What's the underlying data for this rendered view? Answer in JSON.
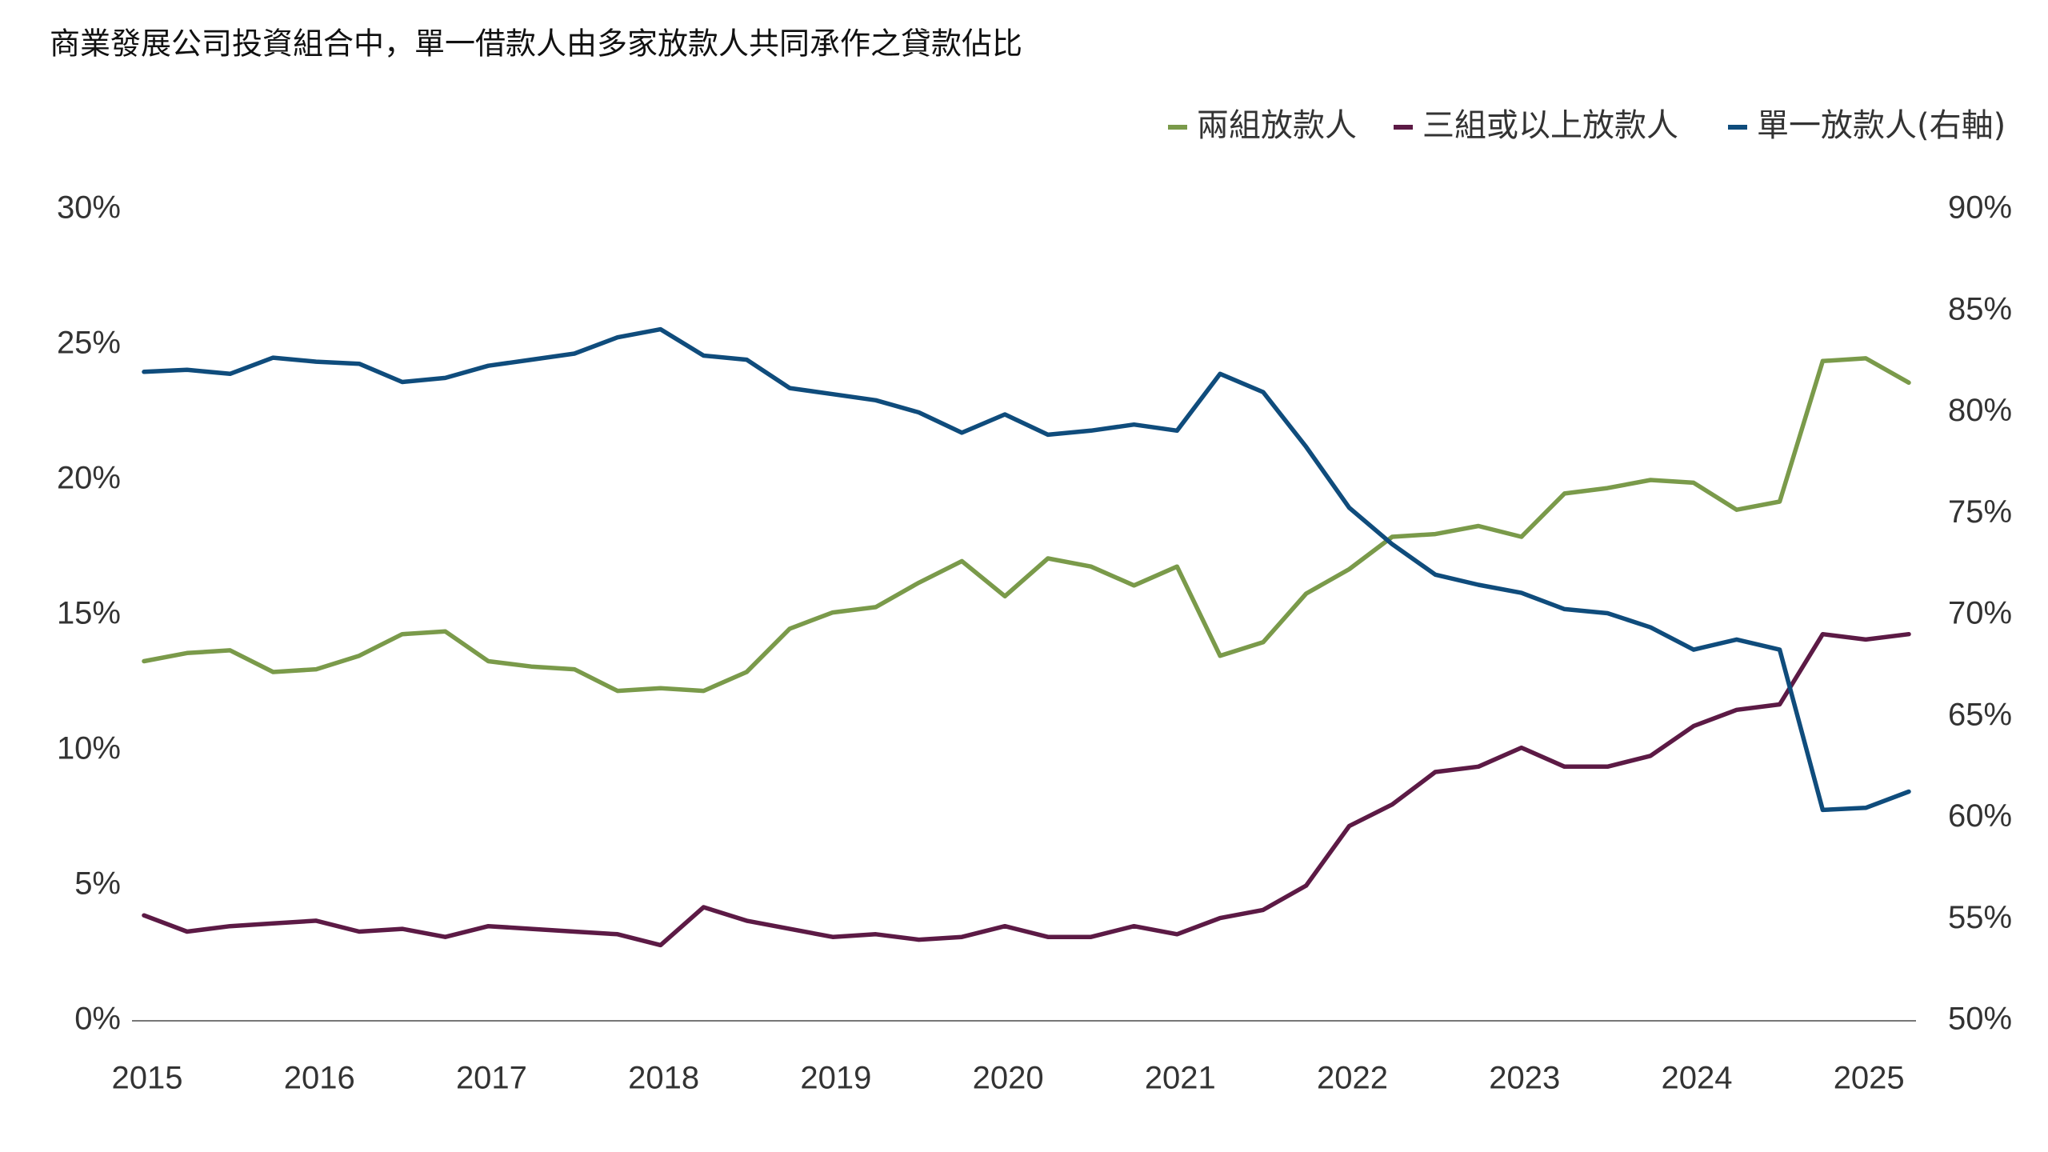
{
  "chart_data": {
    "type": "line",
    "title": "商業發展公司投資組合中，單一借款人由多家放款人共同承作之貸款佔比",
    "categories": [
      "2015",
      null,
      null,
      null,
      "2016",
      null,
      null,
      null,
      "2017",
      null,
      null,
      null,
      "2018",
      null,
      null,
      null,
      "2019",
      null,
      null,
      null,
      "2020",
      null,
      null,
      null,
      "2021",
      null,
      null,
      null,
      "2022",
      null,
      null,
      null,
      "2023",
      null,
      null,
      null,
      "2024",
      null,
      null,
      null,
      "2025",
      null
    ],
    "series": [
      {
        "name": "兩組放款人",
        "color": "#7a9a4a",
        "values": [
          13.3,
          13.6,
          13.7,
          12.9,
          13.0,
          13.5,
          14.3,
          14.4,
          13.3,
          13.1,
          13.0,
          12.2,
          12.3,
          12.2,
          12.9,
          14.5,
          15.1,
          15.3,
          16.2,
          17.0,
          15.7,
          17.1,
          16.8,
          16.1,
          16.8,
          13.5,
          14.0,
          15.8,
          16.7,
          17.9,
          18.0,
          18.3,
          17.9,
          19.5,
          19.7,
          20.0,
          19.9,
          18.9,
          19.2,
          24.4,
          24.5,
          23.6
        ]
      },
      {
        "name": "三組或以上放款人",
        "color": "#5c1a45",
        "values": [
          3.9,
          3.3,
          3.5,
          3.6,
          3.7,
          3.3,
          3.4,
          3.1,
          3.5,
          3.4,
          3.3,
          3.2,
          2.8,
          4.2,
          3.7,
          3.4,
          3.1,
          3.2,
          3.0,
          3.1,
          3.5,
          3.1,
          3.1,
          3.5,
          3.2,
          3.8,
          4.1,
          5.0,
          7.2,
          8.0,
          9.2,
          9.4,
          10.1,
          9.4,
          9.4,
          9.8,
          10.9,
          11.5,
          11.7,
          14.3,
          14.1,
          14.3
        ]
      },
      {
        "name": "單一放款人(右軸)",
        "color": "#0f4c7c",
        "axis": "y2",
        "values": [
          82.0,
          82.1,
          81.9,
          82.7,
          82.5,
          82.4,
          81.5,
          81.7,
          82.3,
          82.6,
          82.9,
          83.7,
          84.1,
          82.8,
          82.6,
          81.2,
          80.9,
          80.6,
          80.0,
          79.0,
          79.9,
          78.9,
          79.1,
          79.4,
          79.1,
          81.9,
          81.0,
          78.3,
          75.3,
          73.5,
          72.0,
          71.5,
          71.1,
          70.3,
          70.1,
          69.4,
          68.3,
          68.8,
          68.3,
          60.4,
          60.5,
          61.3
        ]
      }
    ],
    "ylim": [
      0,
      30
    ],
    "yticks": [
      {
        "value": 0,
        "label": "0%"
      },
      {
        "value": 5,
        "label": "5%"
      },
      {
        "value": 10,
        "label": "10%"
      },
      {
        "value": 15,
        "label": "15%"
      },
      {
        "value": 20,
        "label": "20%"
      },
      {
        "value": 25,
        "label": "25%"
      },
      {
        "value": 30,
        "label": "30%"
      }
    ],
    "y2lim": [
      50,
      90
    ],
    "y2ticks": [
      {
        "value": 50,
        "label": "50%"
      },
      {
        "value": 55,
        "label": "55%"
      },
      {
        "value": 60,
        "label": "60%"
      },
      {
        "value": 65,
        "label": "65%"
      },
      {
        "value": 70,
        "label": "70%"
      },
      {
        "value": 75,
        "label": "75%"
      },
      {
        "value": 80,
        "label": "80%"
      },
      {
        "value": 85,
        "label": "85%"
      },
      {
        "value": 90,
        "label": "90%"
      }
    ],
    "grid": false,
    "legend": "top-right"
  }
}
